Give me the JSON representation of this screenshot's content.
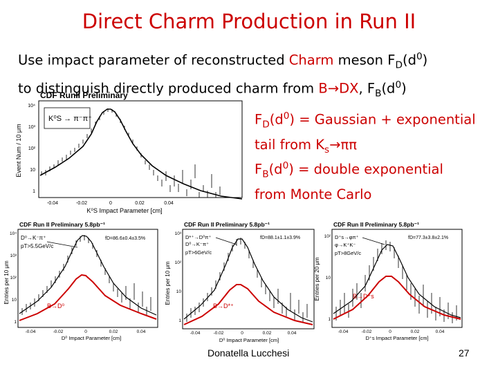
{
  "slide": {
    "title": "Direct Charm Production in Run II",
    "intro": {
      "l1a": "Use impact parameter of reconstructed ",
      "l1b": "Charm",
      "l1c": " meson F",
      "l1d": "D",
      "l1e": "(d",
      "l1f": "0",
      "l1g": ")",
      "l2a": "to distinguish directly produced charm from ",
      "l2b": "B",
      "l2c": "→",
      "l2d": "DX",
      "l2e": ", F",
      "l2f": "B",
      "l2g": "(d",
      "l2h": "0",
      "l2i": ")"
    },
    "note1": {
      "a": "F",
      "b": "D",
      "c": "(d",
      "d": "0",
      "e": ") = Gaussian + exponential",
      "f": "tail from K",
      "g": "s",
      "h": "→ππ"
    },
    "note2": {
      "a": "F",
      "b": "B",
      "c": "(d",
      "d": "0",
      "e": ") = double exponential",
      "f": "from Monte Carlo"
    },
    "footer": {
      "name": "Donatella Lucchesi",
      "page": "27"
    }
  },
  "plots": {
    "top": {
      "header": "CDF RunII Preliminary",
      "legend": "K⁰S → π⁻π⁺",
      "ylabel": "Event Num / 10 μm",
      "xlabel": "K⁰S Impact Parameter [cm]",
      "yticks": [
        "10⁴",
        "10³",
        "10²",
        "10",
        "1"
      ],
      "xticks": [
        "-0.04",
        "-0.02",
        "0",
        "0.02",
        "0.04"
      ]
    },
    "p1": {
      "header": "CDF Run II Preliminary 5.8pb⁻¹",
      "fd": "fD=86.6±0.4±3.5%",
      "decay": "D⁰→K⁻π⁺",
      "cut": "pT>5.5GeV/c",
      "bcomp": "B→D⁰",
      "ylabel": "Entries per 10 μm",
      "xlabel": "D⁰ Impact Parameter [cm]",
      "yticks": [
        "10⁴",
        "10³",
        "10²",
        "10",
        "1"
      ],
      "xticks": [
        "-0.04",
        "-0.02",
        "0",
        "0.02",
        "0.04"
      ]
    },
    "p2": {
      "header": "CDF Run II Preliminary 5.8pb⁻¹",
      "fd": "fD=88.1±1.1±3.9%",
      "decay1": "D*⁺→D⁰π⁺",
      "decay2": "D⁰→K⁻π⁺",
      "cut": "pT>6GeV/c",
      "bcomp": "B→D*⁺",
      "ylabel": "Entries per 10 μm",
      "xlabel": "D⁰ Impact Parameter [cm]",
      "yticks": [
        "10³",
        "10²",
        "10",
        "1"
      ],
      "xticks": [
        "-0.04",
        "-0.02",
        "0",
        "0.02",
        "0.04"
      ]
    },
    "p3": {
      "header": "CDF Run II Preliminary 5.8pb⁻¹",
      "fd": "fD=77.3±3.8±2.1%",
      "decay1": "D⁺s→φπ⁺",
      "decay2": "φ→K⁺K⁻",
      "cut": "pT>8GeV/c",
      "bcomp": "B→D⁺s",
      "ylabel": "Entries per 20 μm",
      "xlabel": "D⁺s Impact Parameter [cm]",
      "yticks": [
        "10²",
        "10",
        "1"
      ],
      "xticks": [
        "-0.04",
        "-0.02",
        "0",
        "0.02",
        "0.04"
      ]
    }
  },
  "colors": {
    "title": "#cc0000",
    "fit": "#cc0000",
    "data": "#000000"
  }
}
